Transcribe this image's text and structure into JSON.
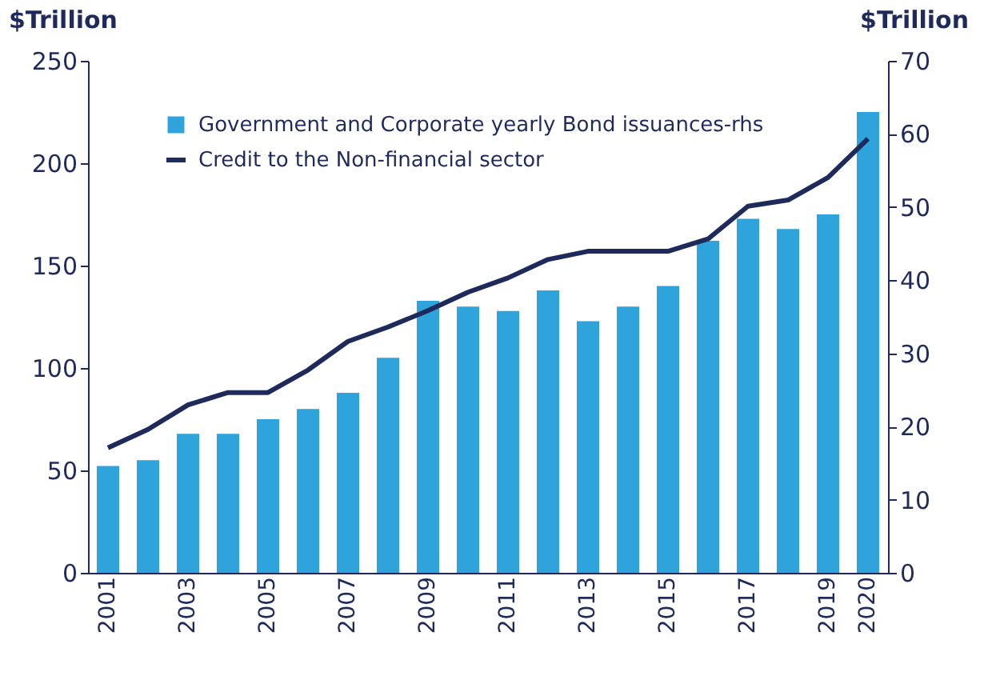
{
  "chart_data": {
    "type": "bar",
    "categories": [
      "2001",
      null,
      "2003",
      null,
      "2005",
      null,
      "2007",
      null,
      "2009",
      null,
      "2011",
      null,
      "2013",
      null,
      "2015",
      null,
      "2017",
      null,
      "2019",
      "2020"
    ],
    "ylabel": "$Trillion",
    "y2label": "$Trillion",
    "ylim": [
      0,
      250
    ],
    "yticks": [
      0,
      50,
      100,
      150,
      200,
      250
    ],
    "y2lim": [
      0,
      70
    ],
    "y2ticks": [
      0,
      10,
      20,
      30,
      40,
      50,
      60,
      70
    ],
    "grid": false,
    "legend": "top left",
    "series": [
      {
        "name": "Government and Corporate yearly Bond issuances-rhs",
        "axis": "y2",
        "color": "#2ea3dc",
        "values": [
          14.6,
          15.4,
          19.0,
          19.0,
          21.0,
          22.4,
          24.6,
          29.4,
          37.2,
          36.4,
          35.8,
          38.6,
          34.4,
          36.4,
          39.2,
          45.4,
          48.4,
          47.0,
          49.0,
          63.0
        ]
      },
      {
        "name": "Credit to the Non-financial sector",
        "type": "line",
        "axis": "y",
        "color": "#1f2a5c",
        "values": [
          61,
          70,
          82,
          88,
          88,
          99,
          113,
          120,
          128,
          137,
          144,
          153,
          157,
          157,
          157,
          163,
          179,
          182,
          193,
          212
        ]
      }
    ]
  }
}
